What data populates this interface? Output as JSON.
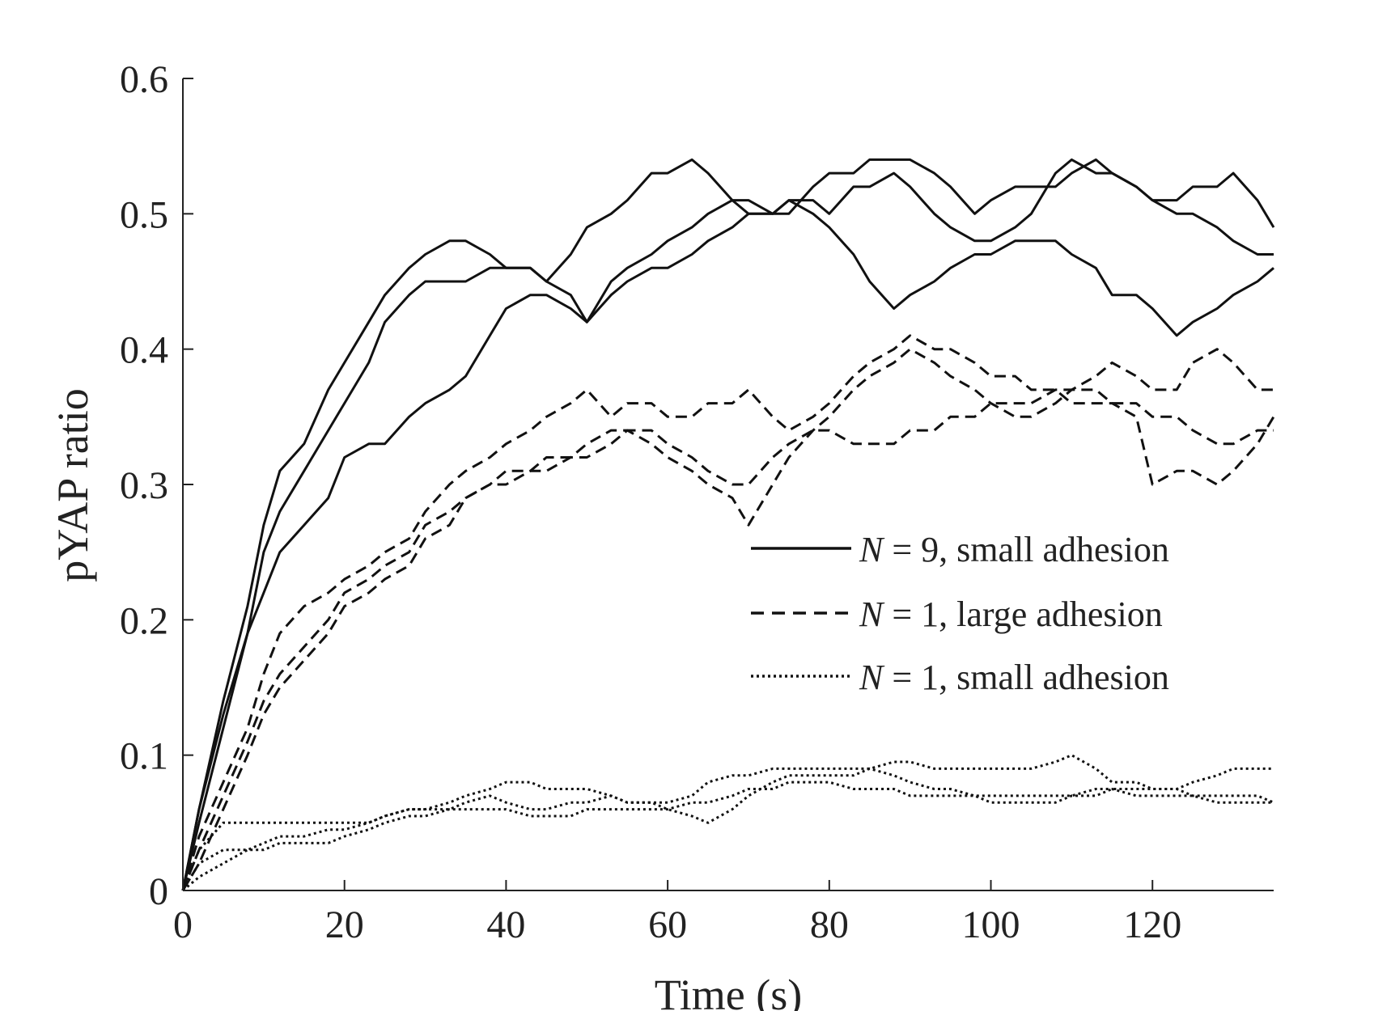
{
  "chart_data": {
    "type": "line",
    "title": "",
    "xlabel": "Time (s)",
    "ylabel": "pYAP ratio",
    "xlim": [
      0,
      135
    ],
    "ylim": [
      0,
      0.6
    ],
    "xticks": [
      0,
      20,
      40,
      60,
      80,
      100,
      120
    ],
    "xtick_labels": [
      "0",
      "20",
      "40",
      "60",
      "80",
      "100",
      "120"
    ],
    "yticks": [
      0,
      0.1,
      0.2,
      0.3,
      0.4,
      0.5,
      0.6
    ],
    "ytick_labels": [
      "0",
      "0.1",
      "0.2",
      "0.3",
      "0.4",
      "0.5",
      "0.6"
    ],
    "grid": false,
    "legend_position": "center-right",
    "legend": [
      {
        "var": "N",
        "rest": " = 9, small adhesion",
        "style": "solid"
      },
      {
        "var": "N",
        "rest": " = 1, large adhesion",
        "style": "dashed"
      },
      {
        "var": "N",
        "rest": " = 1, small adhesion",
        "style": "dotted"
      }
    ],
    "series": [
      {
        "name": "N = 9, small adhesion (run 1)",
        "style": "solid",
        "x": [
          0,
          2,
          5,
          8,
          10,
          12,
          15,
          18,
          20,
          23,
          25,
          28,
          30,
          33,
          35,
          38,
          40,
          43,
          45,
          48,
          50,
          53,
          55,
          58,
          60,
          63,
          65,
          68,
          70,
          73,
          75,
          78,
          80,
          83,
          85,
          88,
          90,
          93,
          95,
          98,
          100,
          103,
          105,
          108,
          110,
          113,
          115,
          118,
          120,
          123,
          125,
          128,
          130,
          133,
          135
        ],
        "y": [
          0,
          0.06,
          0.14,
          0.21,
          0.27,
          0.31,
          0.33,
          0.37,
          0.39,
          0.42,
          0.44,
          0.46,
          0.47,
          0.48,
          0.48,
          0.47,
          0.46,
          0.46,
          0.45,
          0.44,
          0.42,
          0.45,
          0.46,
          0.47,
          0.48,
          0.49,
          0.5,
          0.51,
          0.51,
          0.5,
          0.5,
          0.52,
          0.53,
          0.53,
          0.54,
          0.54,
          0.54,
          0.53,
          0.52,
          0.5,
          0.51,
          0.52,
          0.52,
          0.52,
          0.53,
          0.54,
          0.53,
          0.52,
          0.51,
          0.51,
          0.52,
          0.52,
          0.53,
          0.51,
          0.49
        ]
      },
      {
        "name": "N = 9, small adhesion (run 2)",
        "style": "solid",
        "x": [
          0,
          2,
          5,
          8,
          10,
          12,
          15,
          18,
          20,
          23,
          25,
          28,
          30,
          33,
          35,
          38,
          40,
          43,
          45,
          48,
          50,
          53,
          55,
          58,
          60,
          63,
          65,
          68,
          70,
          73,
          75,
          78,
          80,
          83,
          85,
          88,
          90,
          93,
          95,
          98,
          100,
          103,
          105,
          108,
          110,
          113,
          115,
          118,
          120,
          123,
          125,
          128,
          130,
          133,
          135
        ],
        "y": [
          0,
          0.05,
          0.12,
          0.19,
          0.25,
          0.28,
          0.31,
          0.34,
          0.36,
          0.39,
          0.42,
          0.44,
          0.45,
          0.45,
          0.45,
          0.46,
          0.46,
          0.46,
          0.45,
          0.47,
          0.49,
          0.5,
          0.51,
          0.53,
          0.53,
          0.54,
          0.53,
          0.51,
          0.5,
          0.5,
          0.51,
          0.5,
          0.49,
          0.47,
          0.45,
          0.43,
          0.44,
          0.45,
          0.46,
          0.47,
          0.47,
          0.48,
          0.48,
          0.48,
          0.47,
          0.46,
          0.44,
          0.44,
          0.43,
          0.41,
          0.42,
          0.43,
          0.44,
          0.45,
          0.46
        ]
      },
      {
        "name": "N = 9, small adhesion (run 3)",
        "style": "solid",
        "x": [
          0,
          2,
          5,
          8,
          10,
          12,
          15,
          18,
          20,
          23,
          25,
          28,
          30,
          33,
          35,
          38,
          40,
          43,
          45,
          48,
          50,
          53,
          55,
          58,
          60,
          63,
          65,
          68,
          70,
          73,
          75,
          78,
          80,
          83,
          85,
          88,
          90,
          93,
          95,
          98,
          100,
          103,
          105,
          108,
          110,
          113,
          115,
          118,
          120,
          123,
          125,
          128,
          130,
          133,
          135
        ],
        "y": [
          0,
          0.06,
          0.13,
          0.19,
          0.22,
          0.25,
          0.27,
          0.29,
          0.32,
          0.33,
          0.33,
          0.35,
          0.36,
          0.37,
          0.38,
          0.41,
          0.43,
          0.44,
          0.44,
          0.43,
          0.42,
          0.44,
          0.45,
          0.46,
          0.46,
          0.47,
          0.48,
          0.49,
          0.5,
          0.5,
          0.51,
          0.51,
          0.5,
          0.52,
          0.52,
          0.53,
          0.52,
          0.5,
          0.49,
          0.48,
          0.48,
          0.49,
          0.5,
          0.53,
          0.54,
          0.53,
          0.53,
          0.52,
          0.51,
          0.5,
          0.5,
          0.49,
          0.48,
          0.47,
          0.47
        ]
      },
      {
        "name": "N = 1, large adhesion (run 1)",
        "style": "dashed",
        "x": [
          0,
          2,
          5,
          8,
          10,
          12,
          15,
          18,
          20,
          23,
          25,
          28,
          30,
          33,
          35,
          38,
          40,
          43,
          45,
          48,
          50,
          53,
          55,
          58,
          60,
          63,
          65,
          68,
          70,
          73,
          75,
          78,
          80,
          83,
          85,
          88,
          90,
          93,
          95,
          98,
          100,
          103,
          105,
          108,
          110,
          113,
          115,
          118,
          120,
          123,
          125,
          128,
          130,
          133,
          135
        ],
        "y": [
          0,
          0.04,
          0.08,
          0.12,
          0.16,
          0.19,
          0.21,
          0.22,
          0.23,
          0.24,
          0.25,
          0.26,
          0.28,
          0.3,
          0.31,
          0.32,
          0.33,
          0.34,
          0.35,
          0.36,
          0.37,
          0.35,
          0.36,
          0.36,
          0.35,
          0.35,
          0.36,
          0.36,
          0.37,
          0.35,
          0.34,
          0.35,
          0.36,
          0.38,
          0.39,
          0.4,
          0.41,
          0.4,
          0.4,
          0.39,
          0.38,
          0.38,
          0.37,
          0.37,
          0.36,
          0.36,
          0.36,
          0.35,
          0.3,
          0.31,
          0.31,
          0.3,
          0.31,
          0.33,
          0.35
        ]
      },
      {
        "name": "N = 1, large adhesion (run 2)",
        "style": "dashed",
        "x": [
          0,
          2,
          5,
          8,
          10,
          12,
          15,
          18,
          20,
          23,
          25,
          28,
          30,
          33,
          35,
          38,
          40,
          43,
          45,
          48,
          50,
          53,
          55,
          58,
          60,
          63,
          65,
          68,
          70,
          73,
          75,
          78,
          80,
          83,
          85,
          88,
          90,
          93,
          95,
          98,
          100,
          103,
          105,
          108,
          110,
          113,
          115,
          118,
          120,
          123,
          125,
          128,
          130,
          133,
          135
        ],
        "y": [
          0,
          0.02,
          0.06,
          0.1,
          0.13,
          0.15,
          0.17,
          0.19,
          0.21,
          0.22,
          0.23,
          0.24,
          0.26,
          0.27,
          0.29,
          0.3,
          0.31,
          0.31,
          0.32,
          0.32,
          0.33,
          0.34,
          0.34,
          0.33,
          0.32,
          0.31,
          0.3,
          0.29,
          0.27,
          0.3,
          0.32,
          0.34,
          0.35,
          0.37,
          0.38,
          0.39,
          0.4,
          0.39,
          0.38,
          0.37,
          0.36,
          0.35,
          0.35,
          0.36,
          0.37,
          0.38,
          0.39,
          0.38,
          0.37,
          0.37,
          0.39,
          0.4,
          0.39,
          0.37,
          0.37
        ]
      },
      {
        "name": "N = 1, large adhesion (run 3)",
        "style": "dashed",
        "x": [
          0,
          2,
          5,
          8,
          10,
          12,
          15,
          18,
          20,
          23,
          25,
          28,
          30,
          33,
          35,
          38,
          40,
          43,
          45,
          48,
          50,
          53,
          55,
          58,
          60,
          63,
          65,
          68,
          70,
          73,
          75,
          78,
          80,
          83,
          85,
          88,
          90,
          93,
          95,
          98,
          100,
          103,
          105,
          108,
          110,
          113,
          115,
          118,
          120,
          123,
          125,
          128,
          130,
          133,
          135
        ],
        "y": [
          0,
          0.03,
          0.07,
          0.11,
          0.14,
          0.16,
          0.18,
          0.2,
          0.22,
          0.23,
          0.24,
          0.25,
          0.27,
          0.28,
          0.29,
          0.3,
          0.3,
          0.31,
          0.31,
          0.32,
          0.32,
          0.33,
          0.34,
          0.34,
          0.33,
          0.32,
          0.31,
          0.3,
          0.3,
          0.32,
          0.33,
          0.34,
          0.34,
          0.33,
          0.33,
          0.33,
          0.34,
          0.34,
          0.35,
          0.35,
          0.36,
          0.36,
          0.36,
          0.37,
          0.37,
          0.37,
          0.36,
          0.36,
          0.35,
          0.35,
          0.34,
          0.33,
          0.33,
          0.34,
          0.34
        ]
      },
      {
        "name": "N = 1, small adhesion (run 1)",
        "style": "dotted",
        "x": [
          0,
          2,
          5,
          8,
          10,
          12,
          15,
          18,
          20,
          23,
          25,
          28,
          30,
          33,
          35,
          38,
          40,
          43,
          45,
          48,
          50,
          53,
          55,
          58,
          60,
          63,
          65,
          68,
          70,
          73,
          75,
          78,
          80,
          83,
          85,
          88,
          90,
          93,
          95,
          98,
          100,
          103,
          105,
          108,
          110,
          113,
          115,
          118,
          120,
          123,
          125,
          128,
          130,
          133,
          135
        ],
        "y": [
          0,
          0.03,
          0.05,
          0.05,
          0.05,
          0.05,
          0.05,
          0.05,
          0.05,
          0.05,
          0.055,
          0.06,
          0.06,
          0.065,
          0.07,
          0.075,
          0.08,
          0.08,
          0.075,
          0.075,
          0.075,
          0.07,
          0.065,
          0.065,
          0.065,
          0.07,
          0.08,
          0.085,
          0.085,
          0.09,
          0.09,
          0.09,
          0.09,
          0.09,
          0.09,
          0.095,
          0.095,
          0.09,
          0.09,
          0.09,
          0.09,
          0.09,
          0.09,
          0.095,
          0.1,
          0.09,
          0.08,
          0.08,
          0.075,
          0.075,
          0.08,
          0.085,
          0.09,
          0.09,
          0.09
        ]
      },
      {
        "name": "N = 1, small adhesion (run 2)",
        "style": "dotted",
        "x": [
          0,
          2,
          5,
          8,
          10,
          12,
          15,
          18,
          20,
          23,
          25,
          28,
          30,
          33,
          35,
          38,
          40,
          43,
          45,
          48,
          50,
          53,
          55,
          58,
          60,
          63,
          65,
          68,
          70,
          73,
          75,
          78,
          80,
          83,
          85,
          88,
          90,
          93,
          95,
          98,
          100,
          103,
          105,
          108,
          110,
          113,
          115,
          118,
          120,
          123,
          125,
          128,
          130,
          133,
          135
        ],
        "y": [
          0,
          0.02,
          0.03,
          0.03,
          0.035,
          0.04,
          0.04,
          0.045,
          0.045,
          0.05,
          0.055,
          0.06,
          0.06,
          0.06,
          0.065,
          0.07,
          0.065,
          0.06,
          0.06,
          0.065,
          0.065,
          0.07,
          0.065,
          0.065,
          0.06,
          0.055,
          0.05,
          0.06,
          0.07,
          0.08,
          0.085,
          0.085,
          0.085,
          0.085,
          0.09,
          0.085,
          0.08,
          0.075,
          0.075,
          0.07,
          0.07,
          0.07,
          0.07,
          0.07,
          0.07,
          0.075,
          0.075,
          0.07,
          0.07,
          0.07,
          0.07,
          0.065,
          0.065,
          0.065,
          0.065
        ]
      },
      {
        "name": "N = 1, small adhesion (run 3)",
        "style": "dotted",
        "x": [
          0,
          2,
          5,
          8,
          10,
          12,
          15,
          18,
          20,
          23,
          25,
          28,
          30,
          33,
          35,
          38,
          40,
          43,
          45,
          48,
          50,
          53,
          55,
          58,
          60,
          63,
          65,
          68,
          70,
          73,
          75,
          78,
          80,
          83,
          85,
          88,
          90,
          93,
          95,
          98,
          100,
          103,
          105,
          108,
          110,
          113,
          115,
          118,
          120,
          123,
          125,
          128,
          130,
          133,
          135
        ],
        "y": [
          0,
          0.01,
          0.02,
          0.03,
          0.03,
          0.035,
          0.035,
          0.035,
          0.04,
          0.045,
          0.05,
          0.055,
          0.055,
          0.06,
          0.06,
          0.06,
          0.06,
          0.055,
          0.055,
          0.055,
          0.06,
          0.06,
          0.06,
          0.06,
          0.06,
          0.065,
          0.065,
          0.07,
          0.075,
          0.075,
          0.08,
          0.08,
          0.08,
          0.075,
          0.075,
          0.075,
          0.07,
          0.07,
          0.07,
          0.07,
          0.065,
          0.065,
          0.065,
          0.065,
          0.07,
          0.07,
          0.075,
          0.075,
          0.075,
          0.075,
          0.07,
          0.07,
          0.07,
          0.07,
          0.065
        ]
      }
    ]
  }
}
